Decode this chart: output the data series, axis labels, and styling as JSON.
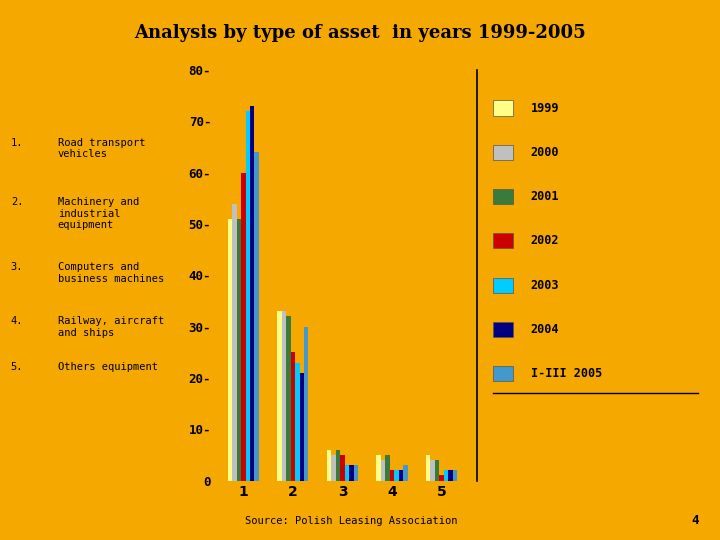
{
  "title": "Analysis by type of asset  in years 1999-2005",
  "background_color": "#F5A800",
  "categories": [
    1,
    2,
    3,
    4,
    5
  ],
  "series": [
    {
      "label": "1999",
      "color": "#FFFF88",
      "values": [
        51,
        33,
        6,
        5,
        5
      ]
    },
    {
      "label": "2000",
      "color": "#C0C0C0",
      "values": [
        54,
        33,
        5,
        4,
        4
      ]
    },
    {
      "label": "2001",
      "color": "#3A7A3A",
      "values": [
        51,
        32,
        6,
        5,
        4
      ]
    },
    {
      "label": "2002",
      "color": "#CC0000",
      "values": [
        60,
        25,
        5,
        2,
        1
      ]
    },
    {
      "label": "2003",
      "color": "#00CCFF",
      "values": [
        72,
        23,
        3,
        2,
        2
      ]
    },
    {
      "label": "2004",
      "color": "#000080",
      "values": [
        73,
        21,
        3,
        2,
        2
      ]
    },
    {
      "label": "I-III 2005",
      "color": "#4499CC",
      "values": [
        64,
        30,
        3,
        3,
        2
      ]
    }
  ],
  "ylim": [
    0,
    80
  ],
  "yticks": [
    0,
    10,
    20,
    30,
    40,
    50,
    60,
    70,
    80
  ],
  "source_text": "Source: Polish Leasing Association",
  "page_number": "4",
  "left_labels_nums": [
    "1.",
    "2.",
    "3.",
    "4.",
    "5."
  ],
  "left_labels_texts": [
    "Road transport\nvehicles",
    "Machinery and\nindustrial\nequipment",
    "Computers and\nbusiness machines",
    "Railway, aircraft\nand ships",
    "Others equipment"
  ]
}
